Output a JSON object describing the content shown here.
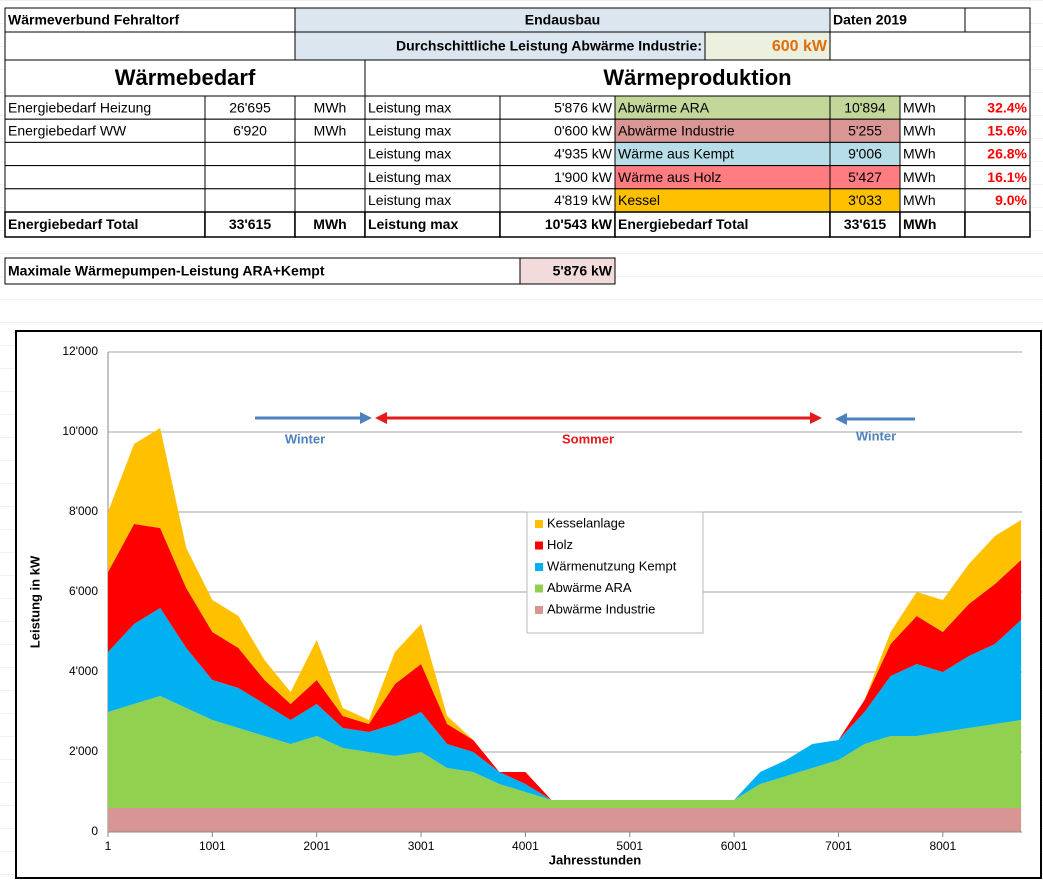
{
  "header": {
    "title": "Wärmeverbund Fehraltorf",
    "stage": "Endausbau",
    "data_year": "Daten 2019",
    "industry_label": "Durchschittliche Leistung Abwärme Industrie:",
    "industry_value": "600 kW"
  },
  "waermebedarf": {
    "title": "Wärmebedarf",
    "rows": [
      [
        "Energiebedarf Heizung",
        "26'695",
        "MWh"
      ],
      [
        "Energiebedarf WW",
        "6'920",
        "MWh"
      ]
    ],
    "total": [
      "Energiebedarf Total",
      "33'615",
      "MWh"
    ]
  },
  "waermeproduktion": {
    "title": "Wärmeproduktion",
    "rows": [
      [
        "Leistung max",
        "5'876 kW",
        "Abwärme ARA",
        "10'894",
        "MWh",
        "32.4%"
      ],
      [
        "Leistung max",
        "0'600 kW",
        "Abwärme Industrie",
        "5'255",
        "MWh",
        "15.6%"
      ],
      [
        "Leistung max",
        "4'935 kW",
        "Wärme aus Kempt",
        "9'006",
        "MWh",
        "26.8%"
      ],
      [
        "Leistung max",
        "1'900 kW",
        "Wärme aus Holz",
        "5'427",
        "MWh",
        "16.1%"
      ],
      [
        "Leistung max",
        "4'819 kW",
        "Kessel",
        "3'033",
        "MWh",
        "9.0%"
      ]
    ],
    "total": [
      "Leistung max",
      "10'543 kW",
      "Energiebedarf Total",
      "33'615",
      "MWh"
    ]
  },
  "max_heatpump": {
    "label": "Maximale Wärmepumpen-Leistung ARA+Kempt",
    "value": "5'876 kW"
  },
  "chart_data": {
    "type": "stacked_area",
    "x_label": "Jahresstunden",
    "y_label": "Leistung in kW",
    "annotations": [
      "Winter",
      "Sommer",
      "Winter"
    ],
    "x": [
      1,
      251,
      501,
      751,
      1001,
      1251,
      1501,
      1751,
      2001,
      2251,
      2501,
      2751,
      3001,
      3251,
      3501,
      3751,
      4001,
      4251,
      4501,
      4751,
      5001,
      5251,
      5501,
      5751,
      6001,
      6251,
      6501,
      6751,
      7001,
      7251,
      7501,
      7751,
      8001,
      8251,
      8501,
      8751
    ],
    "xlim": [
      1,
      8760
    ],
    "xticks": [
      1,
      1001,
      2001,
      3001,
      4001,
      5001,
      6001,
      7001,
      8001
    ],
    "ylim": [
      0,
      12000
    ],
    "yticks": [
      0,
      {
        "value": 2000,
        "label": "2'000"
      },
      {
        "value": 4000,
        "label": "4'000"
      },
      {
        "value": 6000,
        "label": "6'000"
      },
      {
        "value": 8000,
        "label": "8'000"
      },
      {
        "value": 10000,
        "label": "10'000"
      },
      {
        "value": 12000,
        "label": "12'000"
      }
    ],
    "grid": true,
    "series": [
      {
        "name": "Abwärme Industrie",
        "color": "#d99594",
        "values": [
          600,
          600,
          600,
          600,
          600,
          600,
          600,
          600,
          600,
          600,
          600,
          600,
          600,
          600,
          600,
          600,
          600,
          600,
          600,
          600,
          600,
          600,
          600,
          600,
          600,
          600,
          600,
          600,
          600,
          600,
          600,
          600,
          600,
          600,
          600,
          600
        ]
      },
      {
        "name": "Abwärme ARA",
        "color": "#92d050",
        "values": [
          2400,
          2600,
          2800,
          2500,
          2200,
          2000,
          1800,
          1600,
          1800,
          1500,
          1400,
          1300,
          1400,
          1000,
          900,
          600,
          400,
          200,
          200,
          200,
          200,
          200,
          200,
          200,
          200,
          600,
          800,
          1000,
          1200,
          1600,
          1800,
          1800,
          1900,
          2000,
          2100,
          2200
        ]
      },
      {
        "name": "Wärmenutzung Kempt",
        "color": "#00b0f0",
        "values": [
          1500,
          2000,
          2200,
          1500,
          1000,
          1000,
          800,
          600,
          800,
          500,
          500,
          800,
          1000,
          600,
          500,
          300,
          200,
          0,
          0,
          0,
          0,
          0,
          0,
          0,
          0,
          300,
          400,
          600,
          500,
          800,
          1500,
          1800,
          1500,
          1800,
          2000,
          2500
        ]
      },
      {
        "name": "Holz",
        "color": "#ff0000",
        "values": [
          2000,
          2500,
          2000,
          1500,
          1200,
          1000,
          600,
          400,
          600,
          300,
          200,
          1000,
          1200,
          500,
          300,
          0,
          300,
          0,
          0,
          0,
          0,
          0,
          0,
          0,
          0,
          0,
          0,
          0,
          0,
          300,
          800,
          1200,
          1000,
          1300,
          1500,
          1500
        ]
      },
      {
        "name": "Kesselanlage",
        "color": "#ffc000",
        "values": [
          1500,
          2000,
          2500,
          1000,
          800,
          800,
          500,
          300,
          1000,
          200,
          100,
          800,
          1000,
          200,
          0,
          0,
          0,
          0,
          0,
          0,
          0,
          0,
          0,
          0,
          0,
          0,
          0,
          0,
          0,
          0,
          300,
          600,
          800,
          1000,
          1200,
          1000
        ]
      }
    ],
    "legend": "center"
  }
}
